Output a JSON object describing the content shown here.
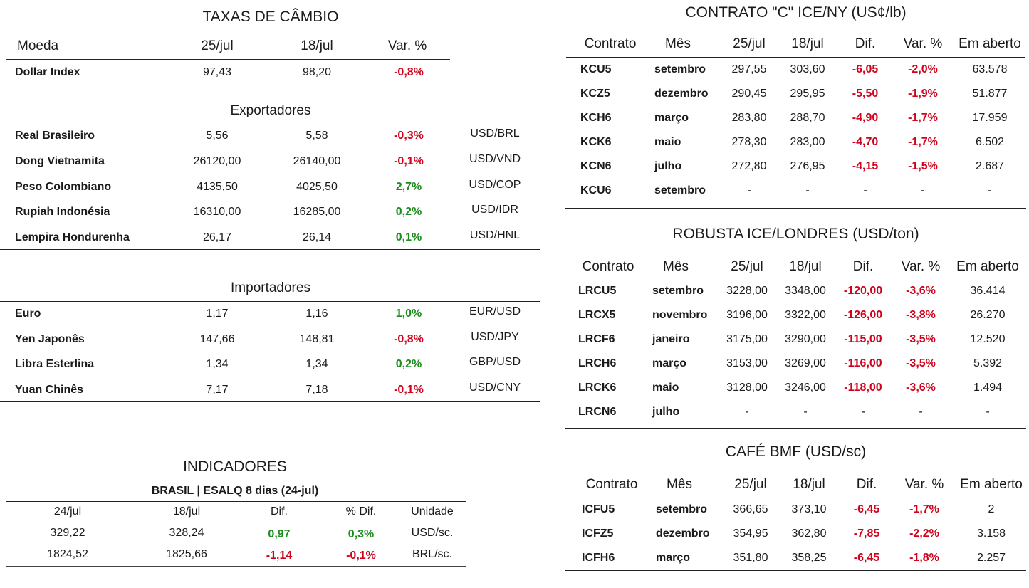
{
  "fx": {
    "title": "TAXAS DE CÂMBIO",
    "headers": [
      "Moeda",
      "25/jul",
      "18/jul",
      "Var. %"
    ],
    "dollar_index": {
      "name": "Dollar Index",
      "v1": "97,43",
      "v2": "98,20",
      "var": "-0,8%",
      "dir": "neg",
      "pair": ""
    },
    "exporters_title": "Exportadores",
    "exporters": [
      {
        "name": "Real Brasileiro",
        "v1": "5,56",
        "v2": "5,58",
        "var": "-0,3%",
        "dir": "neg",
        "pair": "USD/BRL"
      },
      {
        "name": "Dong Vietnamita",
        "v1": "26120,00",
        "v2": "26140,00",
        "var": "-0,1%",
        "dir": "neg",
        "pair": "USD/VND"
      },
      {
        "name": "Peso Colombiano",
        "v1": "4135,50",
        "v2": "4025,50",
        "var": "2,7%",
        "dir": "pos",
        "pair": "USD/COP"
      },
      {
        "name": "Rupiah Indonésia",
        "v1": "16310,00",
        "v2": "16285,00",
        "var": "0,2%",
        "dir": "pos",
        "pair": "USD/IDR"
      },
      {
        "name": "Lempira Hondurenha",
        "v1": "26,17",
        "v2": "26,14",
        "var": "0,1%",
        "dir": "pos",
        "pair": "USD/HNL"
      }
    ],
    "importers_title": "Importadores",
    "importers": [
      {
        "name": "Euro",
        "v1": "1,17",
        "v2": "1,16",
        "var": "1,0%",
        "dir": "pos",
        "pair": "EUR/USD"
      },
      {
        "name": "Yen Japonês",
        "v1": "147,66",
        "v2": "148,81",
        "var": "-0,8%",
        "dir": "neg",
        "pair": "USD/JPY"
      },
      {
        "name": "Libra Esterlina",
        "v1": "1,34",
        "v2": "1,34",
        "var": "0,2%",
        "dir": "pos",
        "pair": "GBP/USD"
      },
      {
        "name": "Yuan Chinês",
        "v1": "7,17",
        "v2": "7,18",
        "var": "-0,1%",
        "dir": "neg",
        "pair": "USD/CNY"
      }
    ]
  },
  "indicators": {
    "title": "INDICADORES",
    "subtitle": "BRASIL | ESALQ 8 dias (24-jul)",
    "headers": [
      "24/jul",
      "18/jul",
      "Dif.",
      "% Dif.",
      "Unidade"
    ],
    "rows": [
      {
        "v1": "329,22",
        "v2": "328,24",
        "dif": "0,97",
        "pct": "0,3%",
        "dir": "pos",
        "unit": "USD/sc."
      },
      {
        "v1": "1824,52",
        "v2": "1825,66",
        "dif": "-1,14",
        "pct": "-0,1%",
        "dir": "neg",
        "unit": "BRL/sc."
      }
    ]
  },
  "contract_headers": [
    "Contrato",
    "Mês",
    "25/jul",
    "18/jul",
    "Dif.",
    "Var. %",
    "Em aberto"
  ],
  "ice_ny": {
    "title": "CONTRATO \"C\" ICE/NY (US¢/lb)",
    "rows": [
      {
        "c": "KCU5",
        "m": "setembro",
        "v1": "297,55",
        "v2": "303,60",
        "dif": "-6,05",
        "var": "-2,0%",
        "oi": "63.578"
      },
      {
        "c": "KCZ5",
        "m": "dezembro",
        "v1": "290,45",
        "v2": "295,95",
        "dif": "-5,50",
        "var": "-1,9%",
        "oi": "51.877"
      },
      {
        "c": "KCH6",
        "m": "março",
        "v1": "283,80",
        "v2": "288,70",
        "dif": "-4,90",
        "var": "-1,7%",
        "oi": "17.959"
      },
      {
        "c": "KCK6",
        "m": "maio",
        "v1": "278,30",
        "v2": "283,00",
        "dif": "-4,70",
        "var": "-1,7%",
        "oi": "6.502"
      },
      {
        "c": "KCN6",
        "m": "julho",
        "v1": "272,80",
        "v2": "276,95",
        "dif": "-4,15",
        "var": "-1,5%",
        "oi": "2.687"
      },
      {
        "c": "KCU6",
        "m": "setembro",
        "v1": "-",
        "v2": "-",
        "dif": "-",
        "var": "-",
        "oi": "-"
      }
    ]
  },
  "robusta": {
    "title": "ROBUSTA ICE/LONDRES (USD/ton)",
    "rows": [
      {
        "c": "LRCU5",
        "m": "setembro",
        "v1": "3228,00",
        "v2": "3348,00",
        "dif": "-120,00",
        "var": "-3,6%",
        "oi": "36.414"
      },
      {
        "c": "LRCX5",
        "m": "novembro",
        "v1": "3196,00",
        "v2": "3322,00",
        "dif": "-126,00",
        "var": "-3,8%",
        "oi": "26.270"
      },
      {
        "c": "LRCF6",
        "m": "janeiro",
        "v1": "3175,00",
        "v2": "3290,00",
        "dif": "-115,00",
        "var": "-3,5%",
        "oi": "12.520"
      },
      {
        "c": "LRCH6",
        "m": "março",
        "v1": "3153,00",
        "v2": "3269,00",
        "dif": "-116,00",
        "var": "-3,5%",
        "oi": "5.392"
      },
      {
        "c": "LRCK6",
        "m": "maio",
        "v1": "3128,00",
        "v2": "3246,00",
        "dif": "-118,00",
        "var": "-3,6%",
        "oi": "1.494"
      },
      {
        "c": "LRCN6",
        "m": "julho",
        "v1": "-",
        "v2": "-",
        "dif": "-",
        "var": "-",
        "oi": "-"
      }
    ]
  },
  "bmf": {
    "title": "CAFÉ BMF (USD/sc)",
    "rows": [
      {
        "c": "ICFU5",
        "m": "setembro",
        "v1": "366,65",
        "v2": "373,10",
        "dif": "-6,45",
        "var": "-1,7%",
        "oi": "2"
      },
      {
        "c": "ICFZ5",
        "m": "dezembro",
        "v1": "354,95",
        "v2": "362,80",
        "dif": "-7,85",
        "var": "-2,2%",
        "oi": "3.158"
      },
      {
        "c": "ICFH6",
        "m": "março",
        "v1": "351,80",
        "v2": "358,25",
        "dif": "-6,45",
        "var": "-1,8%",
        "oi": "2.257"
      }
    ]
  }
}
